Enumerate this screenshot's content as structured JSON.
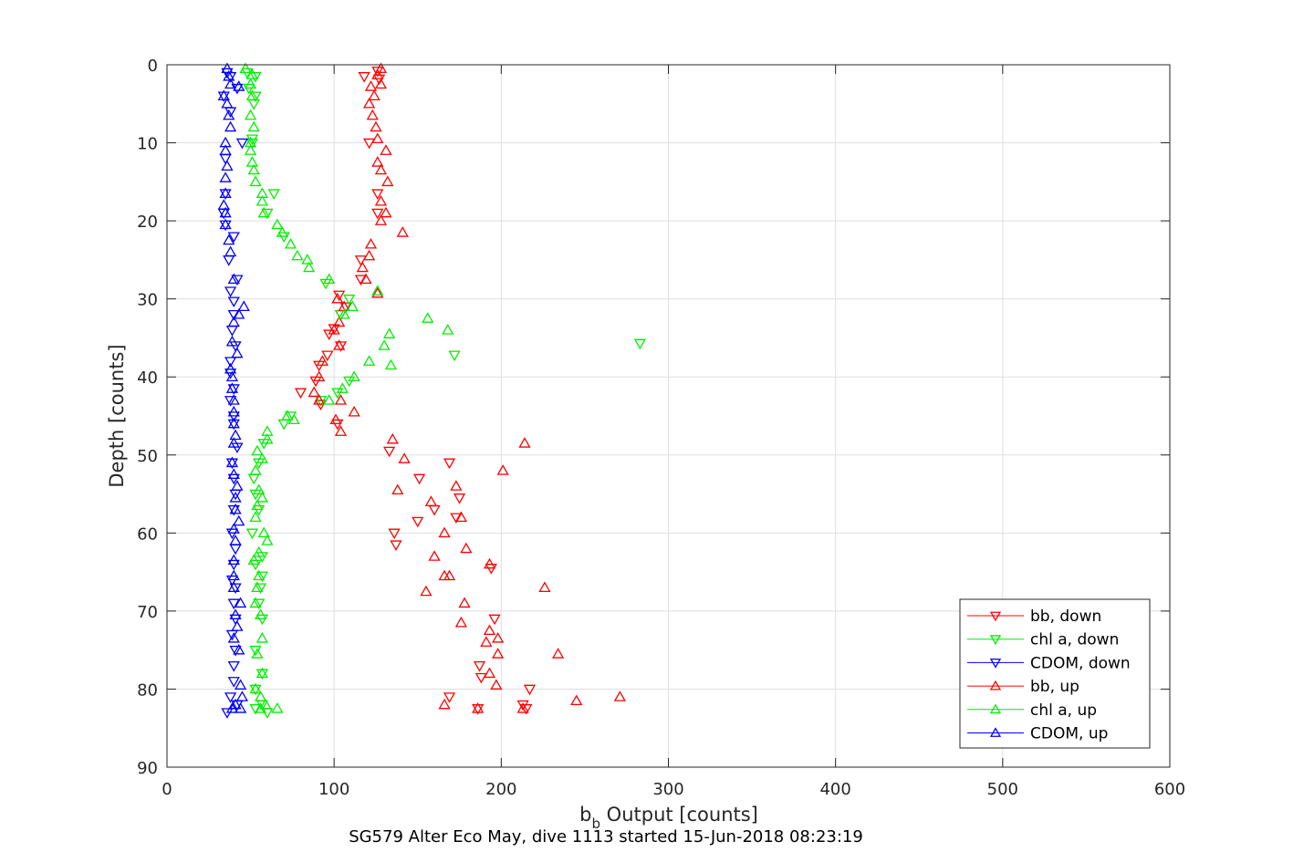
{
  "chart_data": {
    "type": "scatter",
    "xlabel_main": "b",
    "xlabel_sub": "b",
    "xlabel_rest": " Output [counts]",
    "ylabel": "Depth [counts]",
    "caption": "SG579 Alter Eco May, dive 1113 started 15-Jun-2018 08:23:19",
    "xlim": [
      0,
      600
    ],
    "ylim": [
      0,
      90
    ],
    "y_reversed": true,
    "grid": true,
    "legend_position": "bottom-right",
    "x_ticks": [
      "0",
      "100",
      "200",
      "300",
      "400",
      "500",
      "600"
    ],
    "y_ticks": [
      "0",
      "10",
      "20",
      "30",
      "40",
      "50",
      "60",
      "70",
      "80",
      "90"
    ],
    "series": [
      {
        "name": "bb, down",
        "color": "#ff0000",
        "marker": "triangle-down",
        "points": [
          [
            126,
            0.8
          ],
          [
            118,
            1.5
          ],
          [
            127,
            1.8
          ],
          [
            121,
            10
          ],
          [
            126,
            16.5
          ],
          [
            126,
            19
          ],
          [
            116,
            25
          ],
          [
            116,
            27.5
          ],
          [
            103,
            29.5
          ],
          [
            107,
            31
          ],
          [
            104,
            32
          ],
          [
            100,
            33.8
          ],
          [
            97,
            34.5
          ],
          [
            104,
            36
          ],
          [
            96,
            37.2
          ],
          [
            91,
            38.5
          ],
          [
            89,
            40.5
          ],
          [
            80,
            42
          ],
          [
            92,
            43.5
          ],
          [
            102,
            46
          ],
          [
            133,
            49.5
          ],
          [
            169,
            51
          ],
          [
            151,
            53
          ],
          [
            175,
            55.5
          ],
          [
            160,
            57
          ],
          [
            150,
            58.5
          ],
          [
            173,
            58
          ],
          [
            136,
            60
          ],
          [
            137,
            61.5
          ],
          [
            196,
            71
          ],
          [
            187,
            77
          ],
          [
            188,
            78.5
          ],
          [
            217,
            80
          ],
          [
            169,
            81
          ],
          [
            186,
            82.5
          ],
          [
            213,
            82
          ],
          [
            215,
            82.5
          ],
          [
            194,
            64.5
          ]
        ]
      },
      {
        "name": "chl a, down",
        "color": "#00ee00",
        "marker": "triangle-down",
        "points": [
          [
            48,
            1
          ],
          [
            53,
            1.5
          ],
          [
            49,
            3
          ],
          [
            53,
            4
          ],
          [
            52,
            5
          ],
          [
            51,
            9.5
          ],
          [
            51,
            10
          ],
          [
            64,
            16.5
          ],
          [
            60,
            19
          ],
          [
            70,
            22
          ],
          [
            95,
            28
          ],
          [
            109,
            30
          ],
          [
            104,
            32
          ],
          [
            283,
            35.7
          ],
          [
            172,
            37.2
          ],
          [
            109,
            40.5
          ],
          [
            102,
            42
          ],
          [
            92,
            43
          ],
          [
            74,
            45
          ],
          [
            70,
            46
          ],
          [
            58,
            48.5
          ],
          [
            55,
            51
          ],
          [
            52,
            53
          ],
          [
            53,
            55
          ],
          [
            55,
            57
          ],
          [
            51,
            60
          ],
          [
            57,
            63
          ],
          [
            53,
            64
          ],
          [
            57,
            65.5
          ],
          [
            56,
            67
          ],
          [
            55,
            69
          ],
          [
            57,
            71
          ],
          [
            53,
            75
          ],
          [
            57,
            78
          ],
          [
            53,
            80
          ],
          [
            57,
            82
          ],
          [
            60,
            83
          ],
          [
            53,
            82.5
          ]
        ]
      },
      {
        "name": "CDOM, down",
        "color": "#0000ff",
        "marker": "triangle-down",
        "points": [
          [
            36,
            1
          ],
          [
            38,
            1.5
          ],
          [
            42,
            3
          ],
          [
            34,
            4
          ],
          [
            38,
            6
          ],
          [
            45,
            10
          ],
          [
            35,
            12
          ],
          [
            35,
            16.5
          ],
          [
            34,
            19
          ],
          [
            35,
            20.5
          ],
          [
            40,
            22
          ],
          [
            37,
            25
          ],
          [
            42,
            27.5
          ],
          [
            38,
            29
          ],
          [
            40,
            30.3
          ],
          [
            40,
            32
          ],
          [
            39,
            34
          ],
          [
            41,
            36
          ],
          [
            38,
            38
          ],
          [
            38,
            39.5
          ],
          [
            40,
            41.5
          ],
          [
            38,
            43
          ],
          [
            40,
            45
          ],
          [
            40,
            46
          ],
          [
            42,
            49
          ],
          [
            39,
            51
          ],
          [
            40,
            53
          ],
          [
            41,
            55
          ],
          [
            40,
            57
          ],
          [
            39,
            60
          ],
          [
            41,
            62
          ],
          [
            40,
            64
          ],
          [
            39,
            66
          ],
          [
            41,
            67
          ],
          [
            40,
            69
          ],
          [
            41,
            71
          ],
          [
            39,
            73
          ],
          [
            41,
            75
          ],
          [
            40,
            77
          ],
          [
            40,
            79
          ],
          [
            38,
            81
          ],
          [
            42,
            82
          ],
          [
            36,
            83
          ]
        ]
      },
      {
        "name": "bb, up",
        "color": "#ff0000",
        "marker": "triangle-up",
        "points": [
          [
            128,
            0.5
          ],
          [
            126,
            1.3
          ],
          [
            128,
            2.5
          ],
          [
            122,
            2.8
          ],
          [
            124,
            4
          ],
          [
            121,
            5
          ],
          [
            123,
            6.5
          ],
          [
            125,
            8
          ],
          [
            126,
            9.5
          ],
          [
            131,
            11
          ],
          [
            126,
            12.5
          ],
          [
            128,
            13.5
          ],
          [
            132,
            15
          ],
          [
            128,
            17.5
          ],
          [
            131,
            19
          ],
          [
            128,
            20
          ],
          [
            141,
            21.5
          ],
          [
            122,
            23
          ],
          [
            121,
            24.5
          ],
          [
            117,
            26
          ],
          [
            119,
            27.5
          ],
          [
            126,
            29.3
          ],
          [
            102,
            30
          ],
          [
            106,
            31
          ],
          [
            103,
            33
          ],
          [
            100,
            34
          ],
          [
            103,
            36
          ],
          [
            93,
            38
          ],
          [
            91,
            40
          ],
          [
            88,
            42
          ],
          [
            91,
            43
          ],
          [
            104,
            43
          ],
          [
            112,
            44.5
          ],
          [
            101,
            45.5
          ],
          [
            104,
            47
          ],
          [
            135,
            48
          ],
          [
            214,
            48.5
          ],
          [
            142,
            50.5
          ],
          [
            201,
            52
          ],
          [
            138,
            54.5
          ],
          [
            173,
            54
          ],
          [
            158,
            56
          ],
          [
            176,
            58
          ],
          [
            166,
            60
          ],
          [
            179,
            62
          ],
          [
            160,
            63
          ],
          [
            193,
            64
          ],
          [
            166,
            65.5
          ],
          [
            169,
            65.5
          ],
          [
            155,
            67.5
          ],
          [
            226,
            67
          ],
          [
            178,
            69
          ],
          [
            176,
            71.5
          ],
          [
            193,
            72.5
          ],
          [
            198,
            73.5
          ],
          [
            191,
            74
          ],
          [
            198,
            75.5
          ],
          [
            234,
            75.5
          ],
          [
            193,
            78
          ],
          [
            197,
            79.5
          ],
          [
            245,
            81.5
          ],
          [
            271,
            81
          ],
          [
            166,
            82
          ],
          [
            186,
            82.5
          ],
          [
            213,
            82.5
          ]
        ]
      },
      {
        "name": "chl a, up",
        "color": "#00ee00",
        "marker": "triangle-up",
        "points": [
          [
            47,
            0.5
          ],
          [
            51,
            1.3
          ],
          [
            50,
            2.5
          ],
          [
            51,
            4
          ],
          [
            50,
            6.5
          ],
          [
            52,
            8
          ],
          [
            50,
            10
          ],
          [
            50,
            11
          ],
          [
            51,
            12.5
          ],
          [
            52,
            13.5
          ],
          [
            53,
            15
          ],
          [
            57,
            16.5
          ],
          [
            57,
            17.5
          ],
          [
            58,
            19
          ],
          [
            66,
            20.5
          ],
          [
            69,
            21.5
          ],
          [
            74,
            23
          ],
          [
            78,
            24.5
          ],
          [
            84,
            25
          ],
          [
            85,
            26
          ],
          [
            97,
            27.5
          ],
          [
            126,
            29
          ],
          [
            111,
            31
          ],
          [
            106,
            32
          ],
          [
            156,
            32.5
          ],
          [
            168,
            34
          ],
          [
            133,
            34.5
          ],
          [
            130,
            36
          ],
          [
            121,
            38
          ],
          [
            134,
            38.5
          ],
          [
            112,
            40
          ],
          [
            105,
            41.5
          ],
          [
            97,
            43
          ],
          [
            72,
            45
          ],
          [
            76,
            45.5
          ],
          [
            60,
            47
          ],
          [
            60,
            48
          ],
          [
            54,
            49.5
          ],
          [
            57,
            50.5
          ],
          [
            53,
            52
          ],
          [
            55,
            54.5
          ],
          [
            57,
            55.5
          ],
          [
            54,
            56.5
          ],
          [
            53,
            58
          ],
          [
            58,
            60
          ],
          [
            60,
            61
          ],
          [
            55,
            62.5
          ],
          [
            52,
            63.5
          ],
          [
            55,
            65.5
          ],
          [
            54,
            67
          ],
          [
            53,
            69
          ],
          [
            56,
            70.5
          ],
          [
            57,
            73.5
          ],
          [
            54,
            75.5
          ],
          [
            57,
            78
          ],
          [
            53,
            80
          ],
          [
            56,
            81
          ],
          [
            59,
            82
          ],
          [
            56,
            82.5
          ],
          [
            66,
            82.5
          ]
        ]
      },
      {
        "name": "CDOM, up",
        "color": "#0000ff",
        "marker": "triangle-up",
        "points": [
          [
            36,
            0.5
          ],
          [
            37,
            1.5
          ],
          [
            38,
            2.5
          ],
          [
            43,
            2.8
          ],
          [
            34,
            4
          ],
          [
            36,
            5
          ],
          [
            37,
            6.5
          ],
          [
            38,
            8
          ],
          [
            35,
            10
          ],
          [
            35,
            11
          ],
          [
            36,
            13
          ],
          [
            35,
            14.5
          ],
          [
            35,
            16.5
          ],
          [
            34,
            18
          ],
          [
            35,
            19
          ],
          [
            35,
            20.5
          ],
          [
            37,
            22.5
          ],
          [
            38,
            24
          ],
          [
            40,
            27.5
          ],
          [
            46,
            31
          ],
          [
            43,
            32
          ],
          [
            40,
            33
          ],
          [
            39,
            35.5
          ],
          [
            42,
            37
          ],
          [
            38,
            39
          ],
          [
            39,
            40
          ],
          [
            39,
            41.5
          ],
          [
            40,
            43
          ],
          [
            40,
            44.5
          ],
          [
            40,
            46
          ],
          [
            41,
            47.5
          ],
          [
            40,
            48.5
          ],
          [
            39,
            51
          ],
          [
            40,
            52.5
          ],
          [
            42,
            54
          ],
          [
            41,
            55.5
          ],
          [
            41,
            57
          ],
          [
            43,
            58.5
          ],
          [
            40,
            59.5
          ],
          [
            41,
            61
          ],
          [
            40,
            63.5
          ],
          [
            40,
            65.5
          ],
          [
            40,
            67
          ],
          [
            44,
            69
          ],
          [
            41,
            70.5
          ],
          [
            42,
            72
          ],
          [
            40,
            73.5
          ],
          [
            43,
            75
          ],
          [
            44,
            79.5
          ],
          [
            45,
            81
          ],
          [
            41,
            82
          ],
          [
            44,
            82.5
          ],
          [
            39,
            82.5
          ]
        ]
      }
    ]
  }
}
